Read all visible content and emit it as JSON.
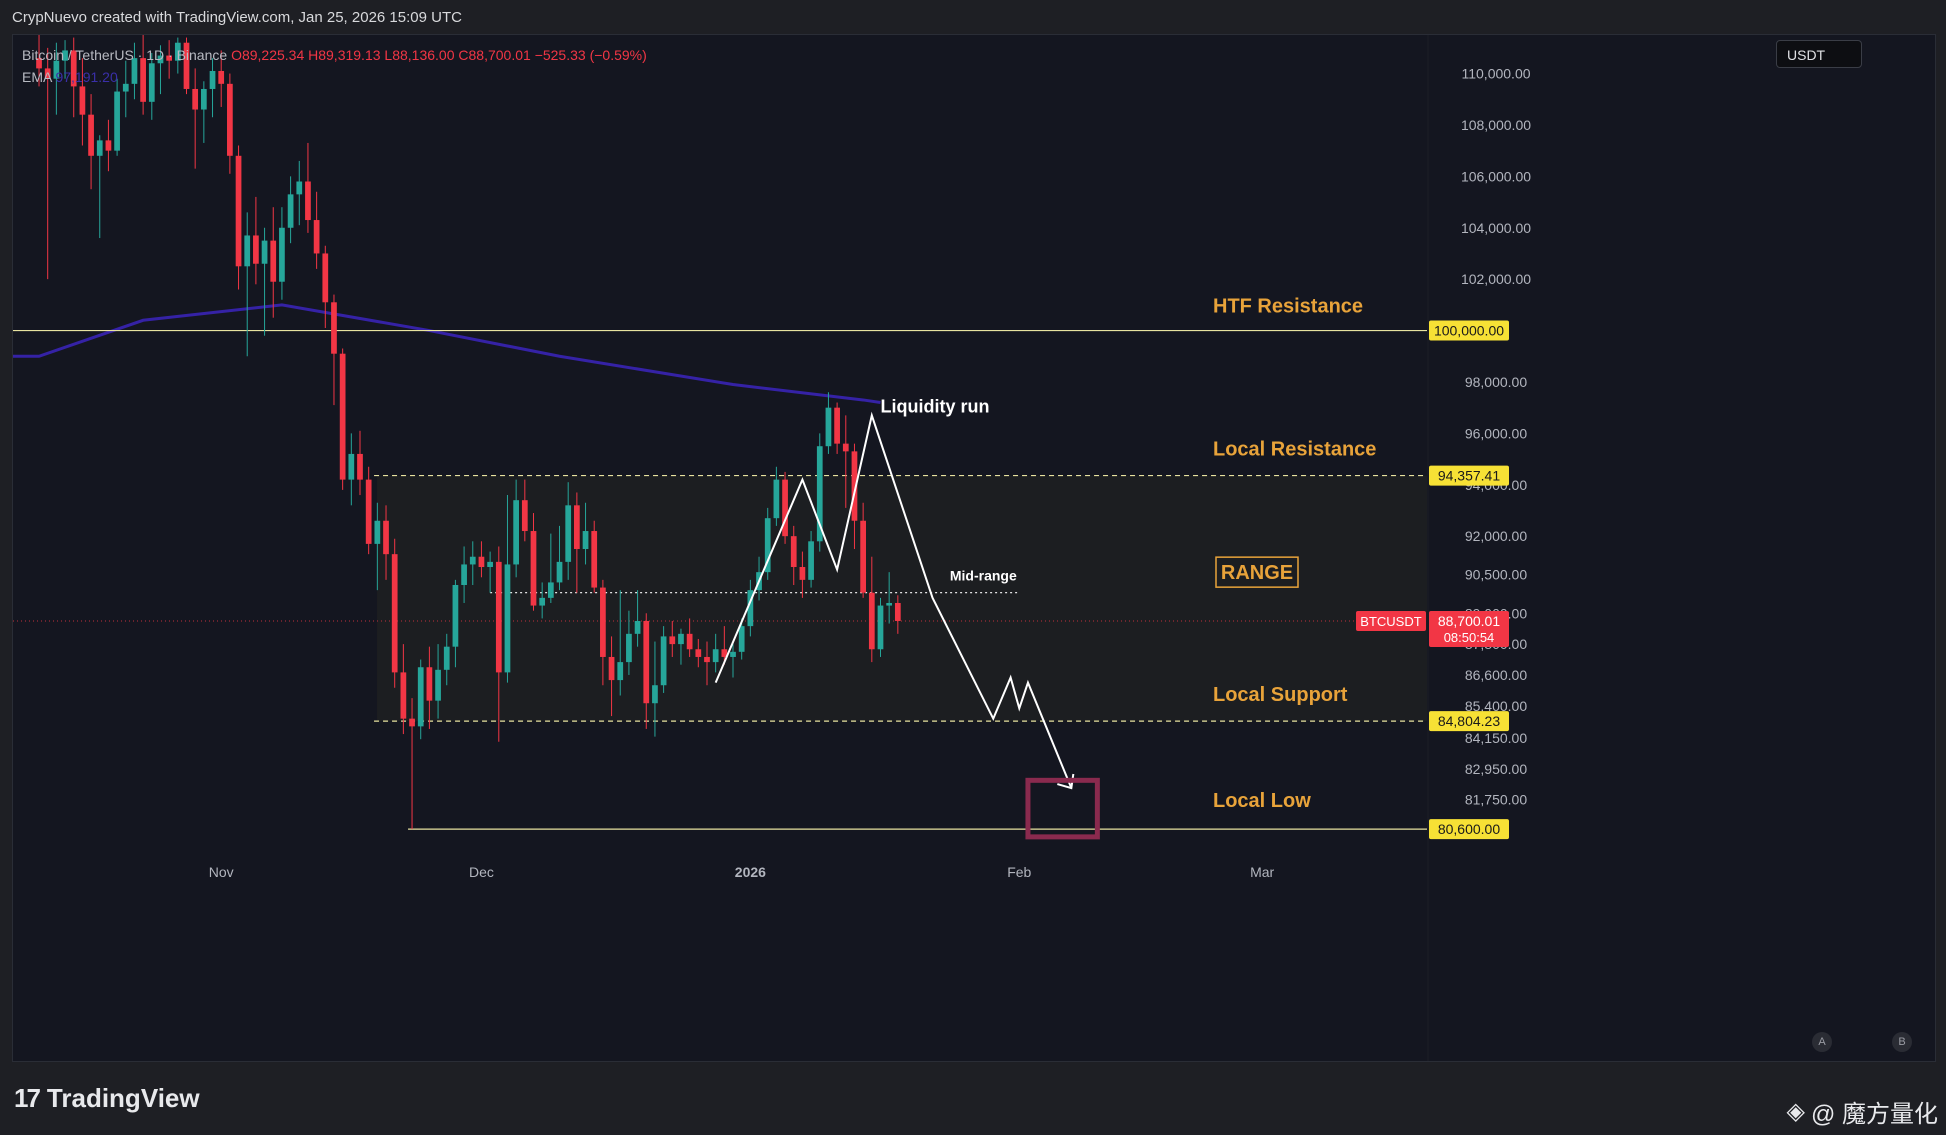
{
  "header": {
    "credit": "CrypNuevo created with TradingView.com, Jan 25, 2026 15:09 UTC"
  },
  "legend": {
    "symbol": "Bitcoin / TetherUS · 1D · Binance",
    "open": "O89,225.34",
    "high": "H89,319.13",
    "low": "L88,136.00",
    "close": "C88,700.01",
    "change": "−525.33 (−0.59%)",
    "ema_label": "EMA",
    "ema_value": "97,191.20"
  },
  "currency": "USDT",
  "footer": {
    "logo": "TradingView",
    "watermark": "@ 魔方量化",
    "scale_a": "A",
    "scale_b": "B"
  },
  "chart_data": {
    "type": "candlestick",
    "title": "Bitcoin / TetherUS · 1D · Binance",
    "ylim": [
      79400,
      111500
    ],
    "y_ticks": [
      "110,000.00",
      "108,000.00",
      "106,000.00",
      "104,000.00",
      "102,000.00",
      "98,000.00",
      "96,000.00",
      "94,000.00",
      "92,000.00",
      "90,500.00",
      "89,000.00",
      "87,800.00",
      "86,600.00",
      "85,400.00",
      "84,150.00",
      "82,950.00",
      "81,750.00"
    ],
    "y_tick_values": [
      110000,
      108000,
      106000,
      104000,
      102000,
      98000,
      96000,
      94000,
      92000,
      90500,
      89000,
      87800,
      86600,
      85400,
      84150,
      82950,
      81750
    ],
    "x_ticks": [
      {
        "label": "Nov",
        "date": "2025-11-01"
      },
      {
        "label": "Dec",
        "date": "2025-12-01"
      },
      {
        "label": "2026",
        "date": "2026-01-01"
      },
      {
        "label": "Feb",
        "date": "2026-02-01"
      },
      {
        "label": "Mar",
        "date": "2026-03-01"
      }
    ],
    "x_range": [
      "2025-10-08",
      "2026-03-20"
    ],
    "first_candle_date": "2025-10-11",
    "candles": [
      [
        110600,
        111500,
        109500,
        110200
      ],
      [
        110200,
        111000,
        102000,
        109800
      ],
      [
        109800,
        111200,
        108400,
        110500
      ],
      [
        110500,
        111300,
        109800,
        110900
      ],
      [
        110900,
        111400,
        108300,
        109500
      ],
      [
        109500,
        110600,
        107200,
        108400
      ],
      [
        108400,
        109200,
        105500,
        106800
      ],
      [
        106800,
        107600,
        103600,
        107400
      ],
      [
        107400,
        108200,
        106200,
        107000
      ],
      [
        107000,
        109800,
        106800,
        109300
      ],
      [
        109300,
        110500,
        108300,
        109600
      ],
      [
        109600,
        111200,
        109000,
        110600
      ],
      [
        110600,
        111500,
        108400,
        108900
      ],
      [
        108900,
        110800,
        108200,
        110400
      ],
      [
        110400,
        111100,
        109200,
        110700
      ],
      [
        110700,
        111300,
        109800,
        110500
      ],
      [
        110500,
        111400,
        110000,
        111200
      ],
      [
        111200,
        111400,
        109200,
        109400
      ],
      [
        109400,
        110200,
        106300,
        108600
      ],
      [
        108600,
        109700,
        107300,
        109400
      ],
      [
        109400,
        110600,
        108300,
        110100
      ],
      [
        110100,
        110900,
        108700,
        109600
      ],
      [
        109600,
        110000,
        106100,
        106800
      ],
      [
        106800,
        107200,
        101600,
        102500
      ],
      [
        102500,
        104600,
        99000,
        103700
      ],
      [
        103700,
        105200,
        101800,
        102600
      ],
      [
        102600,
        104000,
        99800,
        103500
      ],
      [
        103500,
        104800,
        100500,
        101900
      ],
      [
        101900,
        104800,
        101200,
        104000
      ],
      [
        104000,
        106000,
        103400,
        105300
      ],
      [
        105300,
        106600,
        104100,
        105800
      ],
      [
        105800,
        107300,
        103800,
        104300
      ],
      [
        104300,
        105400,
        102400,
        103000
      ],
      [
        103000,
        103300,
        100100,
        101100
      ],
      [
        101100,
        101400,
        97100,
        99100
      ],
      [
        99100,
        99300,
        93800,
        94200
      ],
      [
        94200,
        96000,
        93200,
        95200
      ],
      [
        95200,
        96100,
        93600,
        94200
      ],
      [
        94200,
        94700,
        91300,
        91700
      ],
      [
        91700,
        93300,
        89900,
        92600
      ],
      [
        92600,
        93200,
        90300,
        91300
      ],
      [
        91300,
        91900,
        86100,
        86700
      ],
      [
        86700,
        87800,
        84300,
        84900
      ],
      [
        84900,
        85700,
        80600,
        84600
      ],
      [
        84600,
        87200,
        84100,
        86900
      ],
      [
        86900,
        87700,
        84500,
        85600
      ],
      [
        85600,
        87800,
        84900,
        86800
      ],
      [
        86800,
        88200,
        86200,
        87700
      ],
      [
        87700,
        90300,
        86900,
        90100
      ],
      [
        90100,
        91600,
        89400,
        90900
      ],
      [
        90900,
        91800,
        90100,
        91200
      ],
      [
        91200,
        91800,
        90400,
        90800
      ],
      [
        90800,
        91400,
        89800,
        91000
      ],
      [
        91000,
        91600,
        84000,
        86700
      ],
      [
        86700,
        93600,
        86300,
        90900
      ],
      [
        90900,
        94200,
        90400,
        93400
      ],
      [
        93400,
        94200,
        91800,
        92200
      ],
      [
        92200,
        92900,
        89100,
        89300
      ],
      [
        89300,
        90200,
        88800,
        89600
      ],
      [
        89600,
        92100,
        89400,
        90200
      ],
      [
        90200,
        92400,
        89900,
        91000
      ],
      [
        91000,
        94100,
        90300,
        93200
      ],
      [
        93200,
        93700,
        89800,
        91500
      ],
      [
        91500,
        93300,
        90900,
        92200
      ],
      [
        92200,
        92600,
        89800,
        90000
      ],
      [
        90000,
        90300,
        86200,
        87300
      ],
      [
        87300,
        88100,
        85000,
        86400
      ],
      [
        86400,
        89900,
        85800,
        87100
      ],
      [
        87100,
        89100,
        86600,
        88200
      ],
      [
        88200,
        89900,
        87700,
        88700
      ],
      [
        88700,
        89000,
        84500,
        85500
      ],
      [
        85500,
        87900,
        84200,
        86200
      ],
      [
        86200,
        88500,
        85900,
        88100
      ],
      [
        88100,
        88700,
        87300,
        87800
      ],
      [
        87800,
        88400,
        87000,
        88200
      ],
      [
        88200,
        88800,
        87300,
        87600
      ],
      [
        87600,
        88000,
        86900,
        87300
      ],
      [
        87300,
        87900,
        86200,
        87100
      ],
      [
        87100,
        88200,
        86700,
        87600
      ],
      [
        87600,
        88500,
        87000,
        87300
      ],
      [
        87300,
        87900,
        86500,
        87500
      ],
      [
        87500,
        88800,
        87200,
        88500
      ],
      [
        88500,
        90300,
        88100,
        89900
      ],
      [
        89900,
        91200,
        89500,
        90600
      ],
      [
        90600,
        93100,
        90300,
        92700
      ],
      [
        92700,
        94700,
        92400,
        94200
      ],
      [
        94200,
        94500,
        91700,
        92000
      ],
      [
        92000,
        92400,
        90100,
        90800
      ],
      [
        90800,
        91400,
        89600,
        90300
      ],
      [
        90300,
        92200,
        90000,
        91800
      ],
      [
        91800,
        96000,
        91400,
        95500
      ],
      [
        95500,
        97600,
        95200,
        97000
      ],
      [
        97000,
        97200,
        95200,
        95600
      ],
      [
        95600,
        96700,
        93100,
        95300
      ],
      [
        95300,
        95600,
        91500,
        92600
      ],
      [
        92600,
        93300,
        89600,
        89800
      ],
      [
        89800,
        91200,
        87100,
        87600
      ],
      [
        87600,
        89600,
        87300,
        89300
      ],
      [
        89300,
        90600,
        88600,
        89400
      ],
      [
        89400,
        89700,
        88200,
        88700
      ]
    ],
    "ema": [
      [
        0,
        99000
      ],
      [
        12,
        100400
      ],
      [
        28,
        101000
      ],
      [
        45,
        100000
      ],
      [
        60,
        99000
      ],
      [
        80,
        97900
      ],
      [
        95,
        97300
      ],
      [
        97,
        97200
      ]
    ],
    "levels": [
      {
        "name": "HTF Resistance",
        "value": 100000,
        "label": "100,000.00",
        "style": "solid"
      },
      {
        "name": "Local Resistance",
        "value": 94357.41,
        "label": "94,357.41",
        "style": "dashed"
      },
      {
        "name": "Local Support",
        "value": 84804.23,
        "label": "84,804.23",
        "style": "dashed"
      },
      {
        "name": "Local Low",
        "value": 80600,
        "label": "80,600.00",
        "style": "solid"
      }
    ],
    "mid_range": {
      "label": "Mid-range",
      "value": 89800
    },
    "range_label": "RANGE",
    "annotations": {
      "liquidity_run": "Liquidity run"
    },
    "pattern_path": [
      [
        78,
        86300
      ],
      [
        88,
        94200
      ],
      [
        92,
        90700
      ],
      [
        96,
        96700
      ],
      [
        103,
        89600
      ],
      [
        110,
        84900
      ],
      [
        112,
        86500
      ],
      [
        113,
        85300
      ],
      [
        114,
        86300
      ],
      [
        119,
        82200
      ]
    ],
    "target_box": {
      "from": [
        114,
        82500
      ],
      "to": [
        122,
        80300
      ]
    },
    "current_price": {
      "symbol": "BTCUSDT",
      "price": "88,700.01",
      "countdown": "08:50:54",
      "value": 88700.01
    },
    "colors": {
      "up": "#26a69a",
      "down": "#f23645",
      "ema": "#3522a6",
      "level_solid": "#e8e3a0",
      "label_bg": "#f7e135",
      "text_orange": "#e8a33a",
      "pattern": "#ffffff",
      "target_box": "#8a2a4e"
    }
  }
}
